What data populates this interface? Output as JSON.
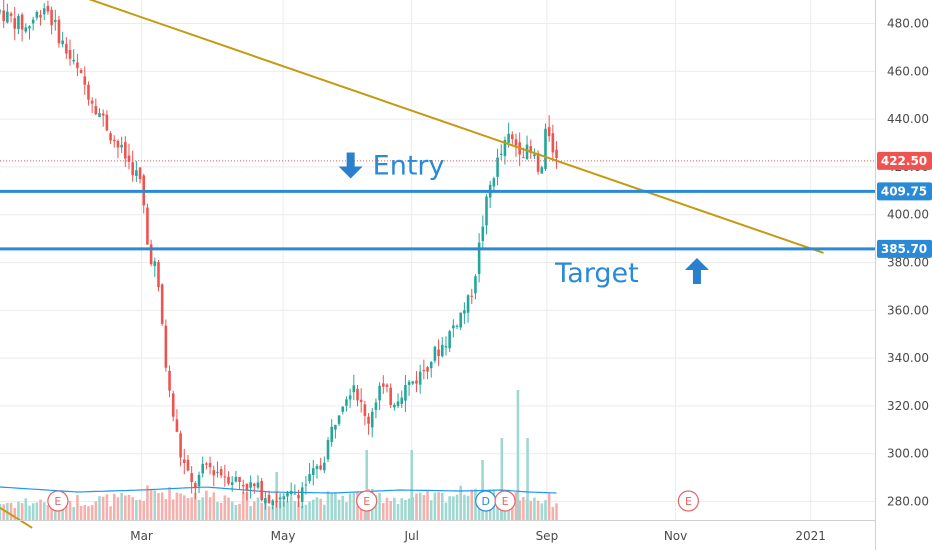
{
  "chart_data": {
    "type": "candlestick",
    "y_axis": {
      "min": 270,
      "max": 488,
      "ticks": [
        "480.00",
        "460.00",
        "440.00",
        "420.00",
        "400.00",
        "380.00",
        "360.00",
        "340.00",
        "320.00",
        "300.00",
        "280.00"
      ],
      "tick_values": [
        480,
        460,
        440,
        420,
        400,
        380,
        360,
        340,
        320,
        300,
        280
      ],
      "position": "right"
    },
    "x_axis": {
      "labels": [
        {
          "text": "Mar",
          "t": 0.1
        },
        {
          "text": "May",
          "t": 0.32
        },
        {
          "text": "Jul",
          "t": 0.52
        },
        {
          "text": "Sep",
          "t": 0.73
        },
        {
          "text": "Nov",
          "t": 0.93
        },
        {
          "text": "2021",
          "t": 1.14
        }
      ],
      "range_t": [
        -0.12,
        1.24
      ]
    },
    "grid": true,
    "price_lines": [
      {
        "id": "entry-line",
        "value": 409.75,
        "label": "409.75",
        "color": "#2a8ad6"
      },
      {
        "id": "target-line",
        "value": 385.7,
        "label": "385.70",
        "color": "#2a8ad6"
      }
    ],
    "last_price": {
      "value": 422.5,
      "label": "422.50",
      "color": "#ef5350"
    },
    "trendlines": [
      {
        "id": "upper-trendline",
        "color": "#c49a12",
        "points": [
          [
            -0.13,
            504
          ],
          [
            1.16,
            384
          ]
        ]
      },
      {
        "id": "lower-trendline",
        "color": "#c49a12",
        "points": [
          [
            -0.13,
            279
          ],
          [
            -0.07,
            269
          ]
        ]
      }
    ],
    "annotations": [
      {
        "id": "entry-note",
        "text": "Entry",
        "arrow": "down",
        "t": 0.425,
        "value": 421
      },
      {
        "id": "target-note",
        "text": "Target",
        "arrow": "up",
        "t": 0.87,
        "value": 376
      }
    ],
    "events": [
      {
        "label": "E",
        "t": -0.03,
        "color": "#e06666"
      },
      {
        "label": "E",
        "t": 0.45,
        "color": "#e06666"
      },
      {
        "label": "D",
        "t": 0.635,
        "color": "#2a8ad6"
      },
      {
        "label": "E",
        "t": 0.665,
        "color": "#e06666"
      },
      {
        "label": "E",
        "t": 0.95,
        "color": "#e06666"
      }
    ],
    "waypoints": [
      [
        -0.12,
        485
      ],
      [
        -0.08,
        478
      ],
      [
        -0.05,
        488
      ],
      [
        -0.02,
        470
      ],
      [
        0.0,
        460
      ],
      [
        0.03,
        445
      ],
      [
        0.06,
        430
      ],
      [
        0.09,
        418
      ],
      [
        0.1,
        412
      ],
      [
        0.11,
        385
      ],
      [
        0.12,
        380
      ],
      [
        0.13,
        360
      ],
      [
        0.14,
        330
      ],
      [
        0.16,
        300
      ],
      [
        0.18,
        285
      ],
      [
        0.2,
        295
      ],
      [
        0.24,
        290
      ],
      [
        0.28,
        285
      ],
      [
        0.3,
        282
      ],
      [
        0.32,
        280
      ],
      [
        0.35,
        286
      ],
      [
        0.38,
        295
      ],
      [
        0.39,
        305
      ],
      [
        0.41,
        322
      ],
      [
        0.43,
        330
      ],
      [
        0.45,
        312
      ],
      [
        0.47,
        328
      ],
      [
        0.49,
        322
      ],
      [
        0.51,
        328
      ],
      [
        0.53,
        332
      ],
      [
        0.55,
        340
      ],
      [
        0.57,
        346
      ],
      [
        0.59,
        356
      ],
      [
        0.61,
        364
      ],
      [
        0.62,
        378
      ],
      [
        0.63,
        396
      ],
      [
        0.64,
        410
      ],
      [
        0.65,
        420
      ],
      [
        0.67,
        432
      ],
      [
        0.69,
        428
      ],
      [
        0.71,
        424
      ],
      [
        0.72,
        414
      ],
      [
        0.73,
        438
      ],
      [
        0.74,
        428
      ],
      [
        0.745,
        422.5
      ]
    ],
    "volume_waypoints": [
      [
        -0.12,
        14
      ],
      [
        0.0,
        17
      ],
      [
        0.1,
        18
      ],
      [
        0.11,
        26
      ],
      [
        0.2,
        22
      ],
      [
        0.3,
        16
      ],
      [
        0.4,
        20
      ],
      [
        0.45,
        22
      ],
      [
        0.52,
        18
      ],
      [
        0.58,
        22
      ],
      [
        0.62,
        30
      ],
      [
        0.66,
        24
      ],
      [
        0.72,
        18
      ],
      [
        0.745,
        16
      ]
    ],
    "volume_ma_waypoints": [
      [
        -0.12,
        33
      ],
      [
        0.0,
        28
      ],
      [
        0.1,
        30
      ],
      [
        0.2,
        33
      ],
      [
        0.3,
        28
      ],
      [
        0.4,
        27
      ],
      [
        0.5,
        30
      ],
      [
        0.6,
        29
      ],
      [
        0.66,
        30
      ],
      [
        0.7,
        28
      ],
      [
        0.745,
        27
      ]
    ],
    "volume_spikes": [
      {
        "t": 0.31,
        "h": 48
      },
      {
        "t": 0.45,
        "h": 70
      },
      {
        "t": 0.52,
        "h": 70
      },
      {
        "t": 0.63,
        "h": 60
      },
      {
        "t": 0.66,
        "h": 82
      },
      {
        "t": 0.685,
        "h": 130
      },
      {
        "t": 0.7,
        "h": 82
      }
    ],
    "colors": {
      "up": "#26a69a",
      "down": "#ef5350",
      "volume_up": "#9fd8d1",
      "volume_down": "#f5b0ad",
      "volume_ma": "#2196f3",
      "grid": "#ececec"
    }
  }
}
